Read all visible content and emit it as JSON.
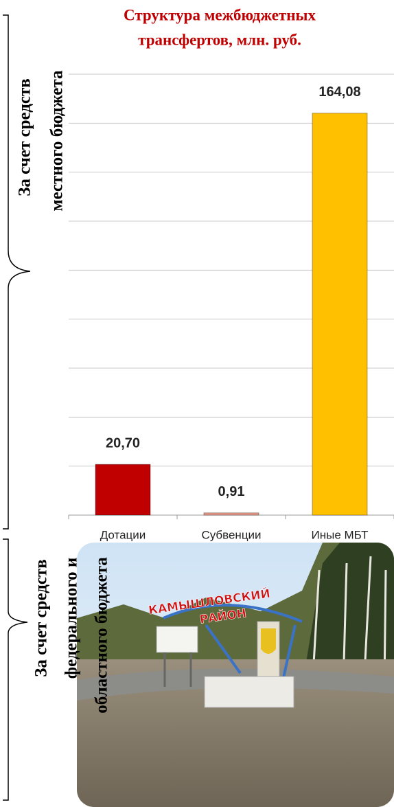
{
  "chart_data": {
    "type": "bar",
    "title": [
      "Структура  межбюджетных",
      "трансфертов, млн. руб."
    ],
    "categories": [
      "Дотации",
      "Субвенции",
      "Иные МБТ"
    ],
    "values": [
      20.7,
      0.91,
      164.08
    ],
    "value_labels": [
      "20,70",
      "0,91",
      "164,08"
    ],
    "colors": [
      "#c00000",
      "#e89a88",
      "#ffc000"
    ],
    "ylim": [
      0,
      180
    ],
    "yticks": [
      0,
      20,
      40,
      60,
      80,
      100,
      120,
      140,
      160,
      180
    ],
    "grid": true
  },
  "annotations": [
    {
      "lines": [
        "За счет  средств",
        "местного  бюджета"
      ]
    },
    {
      "lines": [
        "За счет  средств",
        "федерального и",
        "областного  бюджета"
      ]
    }
  ],
  "photo_sign": [
    "КАМЫШЛОВСКИЙ",
    "РАЙОН"
  ]
}
